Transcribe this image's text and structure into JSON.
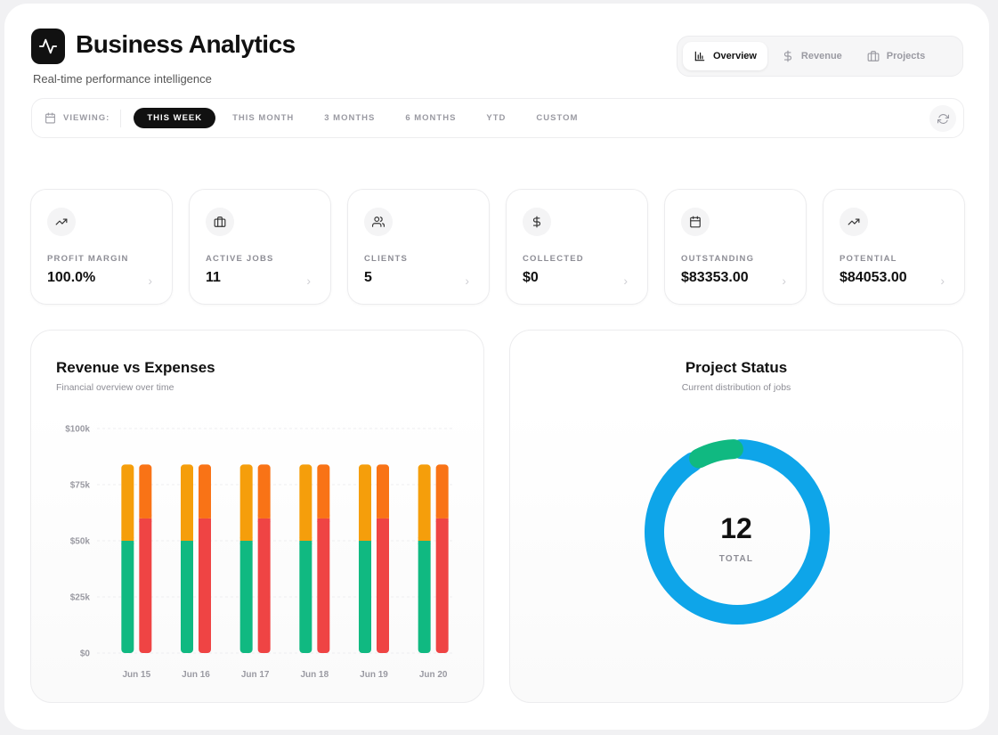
{
  "header": {
    "title": "Business Analytics",
    "subtitle": "Real-time performance intelligence",
    "logo_icon": "activity-icon"
  },
  "view_tabs": [
    {
      "label": "Overview",
      "icon": "bar-chart-icon",
      "active": true
    },
    {
      "label": "Revenue",
      "icon": "dollar-icon",
      "active": false
    },
    {
      "label": "Projects",
      "icon": "briefcase-icon",
      "active": false
    }
  ],
  "filter": {
    "viewing_label": "VIEWING:",
    "periods": [
      "THIS WEEK",
      "THIS MONTH",
      "3 MONTHS",
      "6 MONTHS",
      "YTD",
      "CUSTOM"
    ],
    "active_period": "THIS WEEK"
  },
  "stats": [
    {
      "label": "PROFIT MARGIN",
      "value": "100.0%",
      "icon": "trending-up-icon"
    },
    {
      "label": "ACTIVE JOBS",
      "value": "11",
      "icon": "briefcase-icon"
    },
    {
      "label": "CLIENTS",
      "value": "5",
      "icon": "users-icon"
    },
    {
      "label": "COLLECTED",
      "value": "$0",
      "icon": "dollar-icon"
    },
    {
      "label": "OUTSTANDING",
      "value": "$83353.00",
      "icon": "calendar-icon"
    },
    {
      "label": "POTENTIAL",
      "value": "$84053.00",
      "icon": "trending-up-icon"
    }
  ],
  "revenue_chart": {
    "title": "Revenue vs Expenses",
    "subtitle": "Financial overview over time"
  },
  "status_chart": {
    "title": "Project Status",
    "subtitle": "Current distribution of jobs",
    "total": "12",
    "total_label": "TOTAL"
  },
  "colors": {
    "green": "#10b981",
    "amber": "#f59e0b",
    "red": "#ef4444",
    "orange": "#f97316",
    "blue": "#0ea5e9"
  },
  "chart_data": [
    {
      "type": "bar",
      "categories": [
        "Jun 15",
        "Jun 16",
        "Jun 17",
        "Jun 18",
        "Jun 19",
        "Jun 20"
      ],
      "ylim": [
        0,
        100000
      ],
      "yticks": [
        "$0",
        "$25k",
        "$50k",
        "$75k",
        "$100k"
      ],
      "stacks": [
        {
          "series": [
            {
              "values": [
                50000,
                50000,
                50000,
                50000,
                50000,
                50000
              ],
              "color": "#10b981"
            },
            {
              "values": [
                34000,
                34000,
                34000,
                34000,
                34000,
                34000
              ],
              "color": "#f59e0b"
            }
          ]
        },
        {
          "series": [
            {
              "values": [
                60000,
                60000,
                60000,
                60000,
                60000,
                60000
              ],
              "color": "#ef4444"
            },
            {
              "values": [
                24000,
                24000,
                24000,
                24000,
                24000,
                24000
              ],
              "color": "#f97316"
            }
          ]
        }
      ]
    },
    {
      "type": "pie",
      "slices": [
        {
          "value": 11,
          "color": "#0ea5e9"
        },
        {
          "value": 1,
          "color": "#10b981"
        }
      ]
    }
  ]
}
